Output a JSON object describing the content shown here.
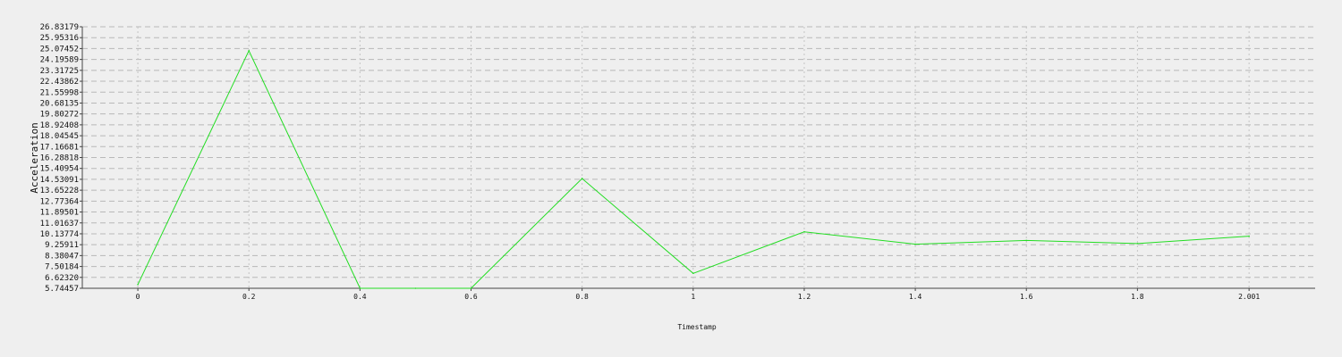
{
  "chart_data": {
    "type": "line",
    "xlabel": "Timestamp",
    "ylabel": "Acceleration",
    "x_tick_labels": [
      "0",
      "0.2",
      "0.4",
      "0.6",
      "0.8",
      "1",
      "1.2",
      "1.4",
      "1.6",
      "1.8",
      "2.001"
    ],
    "y_tick_labels": [
      "5.74457",
      "6.62320",
      "7.50184",
      "8.38047",
      "9.25911",
      "10.13774",
      "11.01637",
      "11.89501",
      "12.77364",
      "13.65228",
      "14.53091",
      "15.40954",
      "16.28818",
      "17.16681",
      "18.04545",
      "18.92408",
      "19.80272",
      "20.68135",
      "21.55998",
      "22.43862",
      "23.31725",
      "24.19589",
      "25.07452",
      "25.95316",
      "26.83179"
    ],
    "xlim": [
      -0.1,
      2.12
    ],
    "ylim": [
      5.74457,
      26.83179
    ],
    "grid": true,
    "series": [
      {
        "color": "#22dd22",
        "points": [
          [
            0,
            6.05
          ],
          [
            0.2,
            24.9
          ],
          [
            0.4,
            5.74457
          ],
          [
            0.5,
            5.74457
          ],
          [
            0.6,
            5.74457
          ],
          [
            0.8,
            14.6
          ],
          [
            1.0,
            6.95
          ],
          [
            1.2,
            10.3
          ],
          [
            1.4,
            9.3
          ],
          [
            1.6,
            9.6
          ],
          [
            1.8,
            9.35
          ],
          [
            2.001,
            9.95
          ]
        ]
      }
    ]
  }
}
